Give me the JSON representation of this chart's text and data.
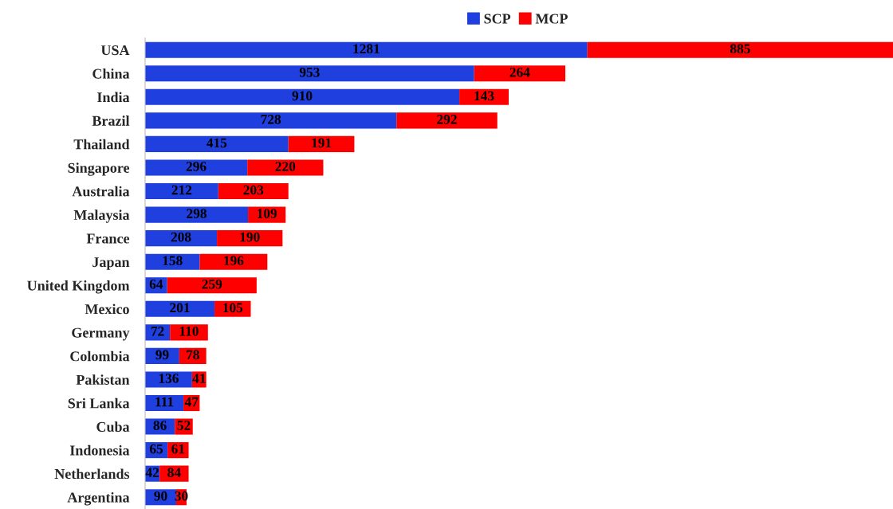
{
  "chart_data": {
    "type": "bar",
    "orientation": "horizontal",
    "stacked": true,
    "data_labels": true,
    "legend": "top",
    "grid": false,
    "categories": [
      "USA",
      "China",
      "India",
      "Brazil",
      "Thailand",
      "Singapore",
      "Australia",
      "Malaysia",
      "France",
      "Japan",
      "United Kingdom",
      "Mexico",
      "Germany",
      "Colombia",
      "Pakistan",
      "Sri Lanka",
      "Cuba",
      "Indonesia",
      "Netherlands",
      "Argentina"
    ],
    "series": [
      {
        "name": "SCP",
        "color": "#1f3fdf",
        "values": [
          1281,
          953,
          910,
          728,
          415,
          296,
          212,
          298,
          208,
          158,
          64,
          201,
          72,
          99,
          136,
          111,
          86,
          65,
          42,
          90
        ]
      },
      {
        "name": "MCP",
        "color": "#ff0000",
        "values": [
          885,
          264,
          143,
          292,
          191,
          220,
          203,
          109,
          190,
          196,
          259,
          105,
          110,
          78,
          41,
          47,
          52,
          61,
          84,
          30
        ]
      }
    ]
  }
}
